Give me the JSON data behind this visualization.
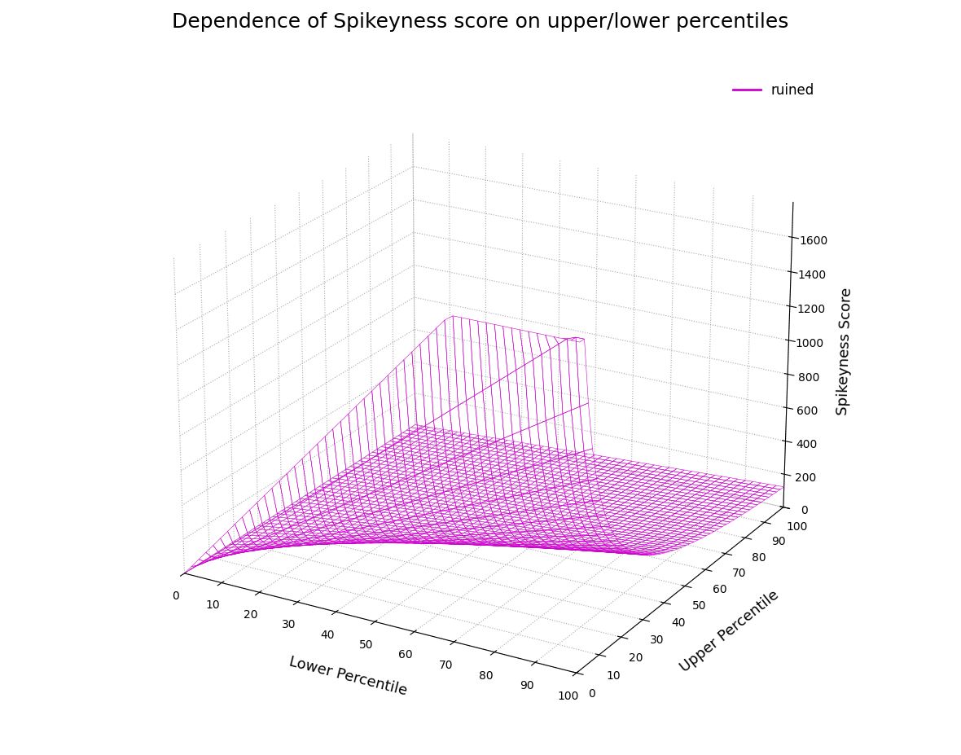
{
  "title": "Dependence of Spikeyness score on upper/lower percentiles",
  "xlabel": "Lower Percentile",
  "ylabel": "Upper Percentile",
  "zlabel": "Spikeyness Score",
  "legend_label": "ruined",
  "surface_color": "#CC00CC",
  "surface_edge_color": "#CC00CC",
  "background_color": "#ffffff",
  "zlim": [
    0,
    1800
  ],
  "n_points": 51,
  "elev": 22,
  "azim": -60,
  "title_fontsize": 18,
  "label_fontsize": 13,
  "tick_fontsize": 10
}
